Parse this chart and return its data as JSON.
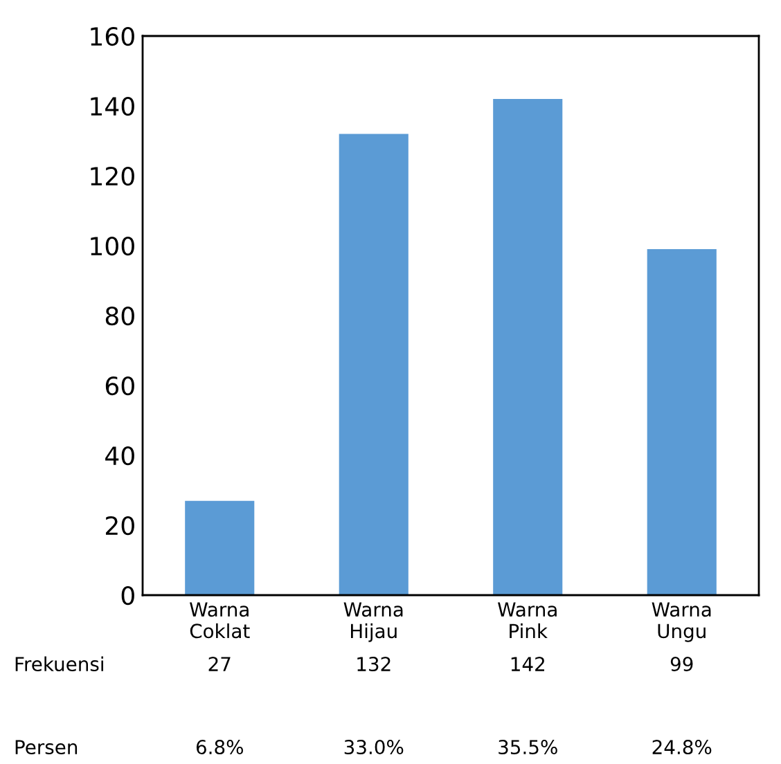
{
  "chart_data": {
    "type": "bar",
    "categories": [
      "Warna\nCoklat",
      "Warna\nHijau",
      "Warna\nPink",
      "Warna\nUngu"
    ],
    "series": [
      {
        "name": "Frekuensi",
        "color": "#5b9bd5",
        "values": [
          27,
          132,
          142,
          99
        ]
      }
    ],
    "ylim": [
      0,
      160
    ],
    "yticks": [
      0,
      20,
      40,
      60,
      80,
      100,
      120,
      140,
      160
    ],
    "grid": false,
    "data_labels": true,
    "annotations": [
      "Persen",
      "6.8%",
      "33.0%",
      "35.5%",
      "24.8%"
    ]
  }
}
